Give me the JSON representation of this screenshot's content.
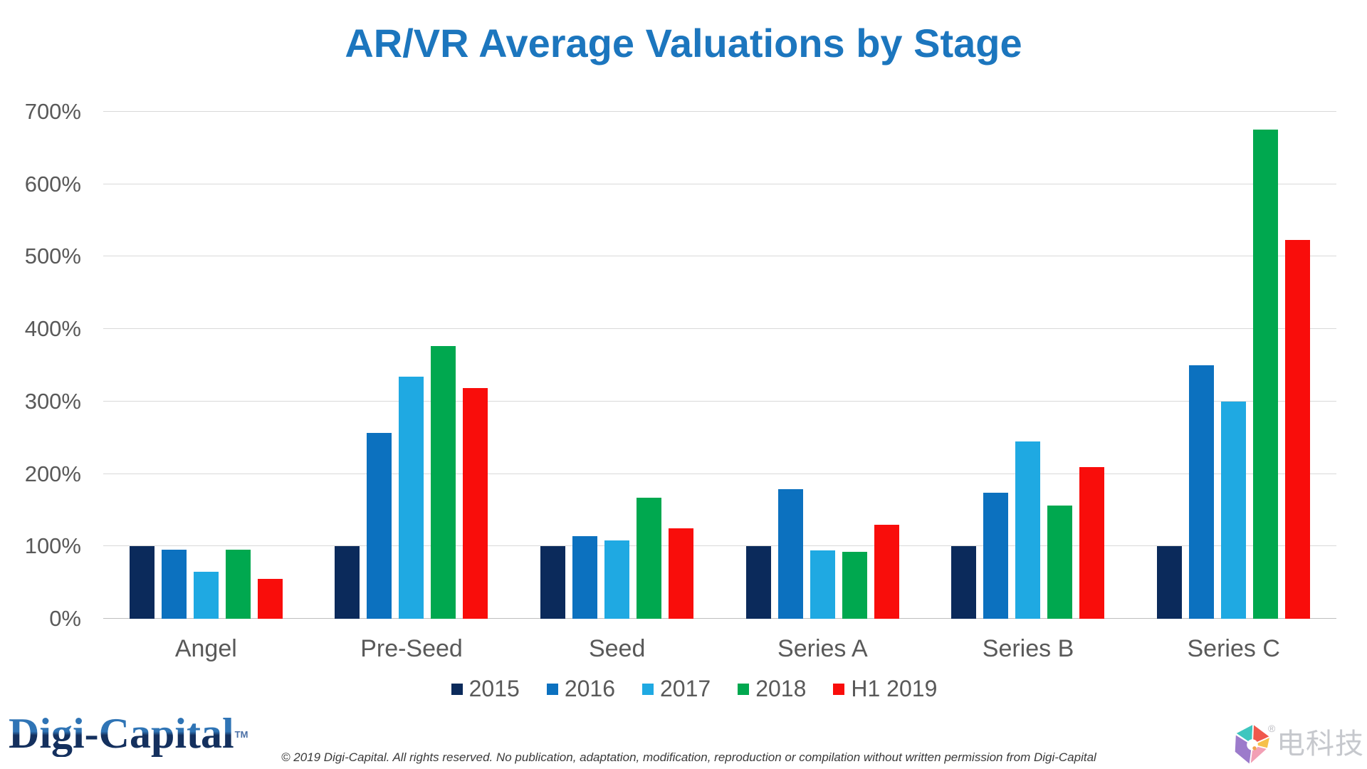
{
  "title": "AR/VR Average Valuations by Stage",
  "colors": {
    "title": "#1C76BE",
    "axis_text": "#595959",
    "gridline": "#D9D9D9",
    "axis_line": "#BFBFBF"
  },
  "chart_data": {
    "type": "bar",
    "title": "AR/VR Average Valuations by Stage",
    "categories": [
      "Angel",
      "Pre-Seed",
      "Seed",
      "Series A",
      "Series B",
      "Series C"
    ],
    "series": [
      {
        "name": "2015",
        "color": "#0B2A5B",
        "values": [
          100,
          100,
          100,
          100,
          100,
          100
        ]
      },
      {
        "name": "2016",
        "color": "#0C71BF",
        "values": [
          95,
          257,
          114,
          179,
          174,
          350
        ]
      },
      {
        "name": "2017",
        "color": "#1FA9E2",
        "values": [
          65,
          334,
          108,
          94,
          245,
          300
        ]
      },
      {
        "name": "2018",
        "color": "#00A84F",
        "values": [
          95,
          377,
          167,
          92,
          156,
          675
        ]
      },
      {
        "name": "H1 2019",
        "color": "#F90D0B",
        "values": [
          55,
          319,
          125,
          130,
          209,
          523
        ]
      }
    ],
    "ylabel": "",
    "xlabel": "",
    "ylim": [
      0,
      700
    ],
    "ytick_step": 100,
    "ytick_suffix": "%",
    "grid": true,
    "legend_position": "bottom"
  },
  "footer": {
    "brand": "Digi-Capital",
    "brand_tm": "TM",
    "copyright": "© 2019 Digi-Capital. All rights reserved. No publication, adaptation, modification, reproduction or compilation without written permission from Digi-Capital",
    "partner_logo_text": "电科技",
    "registered_mark": "®"
  }
}
